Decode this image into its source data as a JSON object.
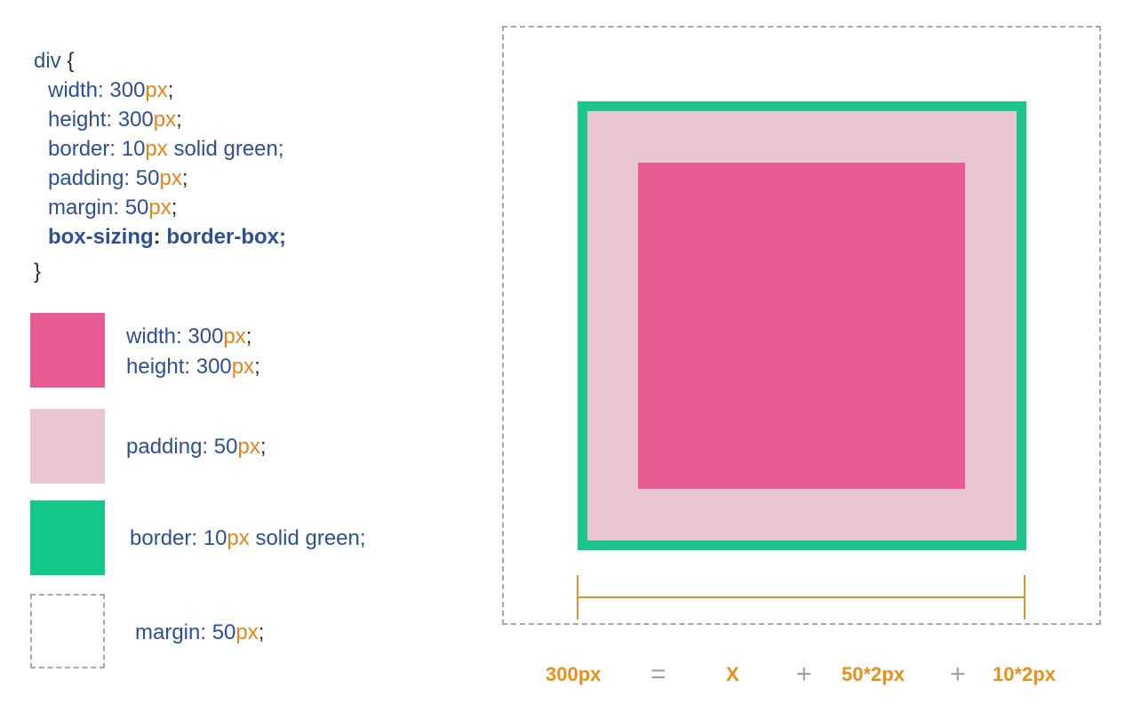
{
  "css_code": {
    "selector": "div",
    "open_brace": "{",
    "close_brace": "}",
    "lines": [
      {
        "prop": "width: ",
        "num": "300",
        "unit": "px",
        "rest": ";"
      },
      {
        "prop": "height: ",
        "num": "300",
        "unit": "px",
        "rest": ";"
      },
      {
        "prop": "border: ",
        "num": "10",
        "unit": "px",
        "rest": " solid green;"
      },
      {
        "prop": "padding: ",
        "num": "50",
        "unit": "px",
        "rest": ";"
      },
      {
        "prop": "margin: ",
        "num": "50",
        "unit": "px",
        "rest": ";"
      }
    ],
    "box_sizing": {
      "prop": "box-sizing",
      "sep": ": ",
      "value": "border-box;"
    }
  },
  "legend": {
    "content": {
      "color": "#e85b93",
      "line1": {
        "prop": "width: ",
        "num": "300",
        "unit": "px",
        "rest": ";"
      },
      "line2": {
        "prop": "height: ",
        "num": "300",
        "unit": "px",
        "rest": ";"
      }
    },
    "padding": {
      "color": "#e9c5d0",
      "line1": {
        "prop": "padding: ",
        "num": "50",
        "unit": "px",
        "rest": ";"
      }
    },
    "border": {
      "color": "#1dc48e",
      "line1": {
        "prop": "border: ",
        "num": "10",
        "unit": "px",
        "rest": " solid green;"
      }
    },
    "margin": {
      "style": "dashed",
      "line1": {
        "prop": "margin: ",
        "num": "50",
        "unit": "px",
        "rest": ";"
      }
    }
  },
  "colors": {
    "text": "#2d4f96",
    "unit": "#e8831a",
    "equation": "#e8901a",
    "operator": "#a0a0a0",
    "border_green": "#1dc48e",
    "padding_pink": "#e9c5d0",
    "content_pink": "#e85b93",
    "dimension_line": "#e0952a"
  },
  "equation": {
    "total": "300px",
    "equals": "=",
    "content": "X",
    "plus1": "+",
    "padding": "50*2px",
    "plus2": "+",
    "border": "10*2px"
  }
}
